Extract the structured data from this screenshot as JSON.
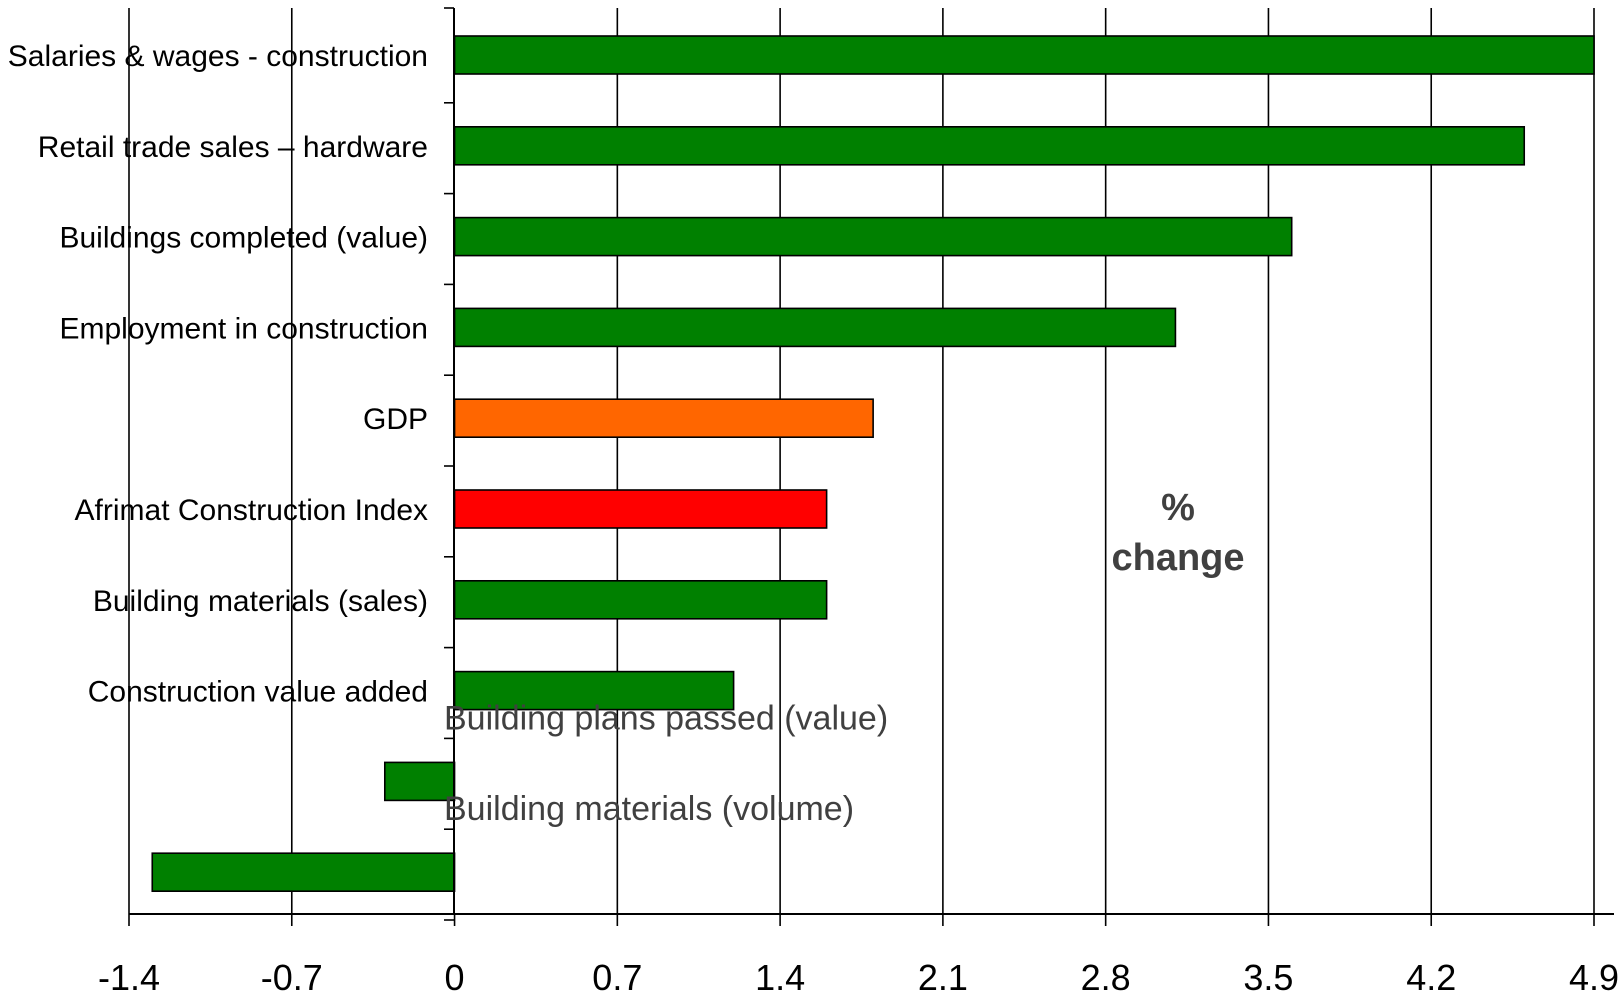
{
  "chart_data": {
    "type": "bar",
    "orientation": "horizontal",
    "categories": [
      "Salaries & wages - construction",
      "Retail trade sales – hardware",
      "Buildings completed  (value)",
      "Employment in construction",
      "GDP",
      "Afrimat Construction Index",
      "Building materials (sales)",
      "Construction value added",
      "Building plans passed (value)",
      "Building materials (volume)"
    ],
    "values": [
      4.9,
      4.6,
      3.6,
      3.1,
      1.8,
      1.6,
      1.6,
      1.2,
      -0.3,
      -1.3
    ],
    "bar_colors": [
      "#008000",
      "#008000",
      "#008000",
      "#008000",
      "#ff6600",
      "#ff0000",
      "#008000",
      "#008000",
      "#008000",
      "#008000"
    ],
    "xlim": [
      -1.4,
      4.9
    ],
    "x_ticks": [
      "-1.4",
      "-0.7",
      "0",
      "0.7",
      "1.4",
      "2.1",
      "2.8",
      "3.5",
      "4.2",
      "4.9"
    ],
    "annotation": "% change",
    "grid": "vertical",
    "legend": "none"
  }
}
